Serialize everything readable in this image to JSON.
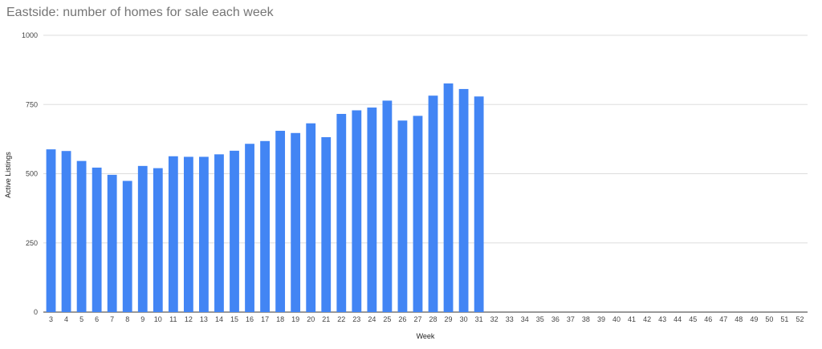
{
  "chart_data": {
    "type": "bar",
    "title": "Eastside: number of homes for sale each week",
    "xlabel": "Week",
    "ylabel": "Active Listings",
    "ylim": [
      0,
      1000
    ],
    "yticks": [
      "0",
      "250",
      "500",
      "750",
      "1000"
    ],
    "grid": true,
    "legend": "none",
    "bar_color": "#4285f4",
    "categories": [
      "3",
      "4",
      "5",
      "6",
      "7",
      "8",
      "9",
      "10",
      "11",
      "12",
      "13",
      "14",
      "15",
      "16",
      "17",
      "18",
      "19",
      "20",
      "21",
      "22",
      "23",
      "24",
      "25",
      "26",
      "27",
      "28",
      "29",
      "30",
      "31",
      "32",
      "33",
      "34",
      "35",
      "36",
      "37",
      "38",
      "39",
      "40",
      "41",
      "42",
      "43",
      "44",
      "45",
      "46",
      "47",
      "48",
      "49",
      "50",
      "51",
      "52"
    ],
    "series": [
      {
        "values": [
          588,
          582,
          546,
          522,
          496,
          474,
          528,
          520,
          563,
          561,
          561,
          570,
          583,
          608,
          618,
          655,
          647,
          682,
          632,
          716,
          729,
          739,
          764,
          692,
          709,
          782,
          826,
          806,
          779,
          null,
          null,
          null,
          null,
          null,
          null,
          null,
          null,
          null,
          null,
          null,
          null,
          null,
          null,
          null,
          null,
          null,
          null,
          null,
          null,
          null
        ]
      }
    ]
  }
}
